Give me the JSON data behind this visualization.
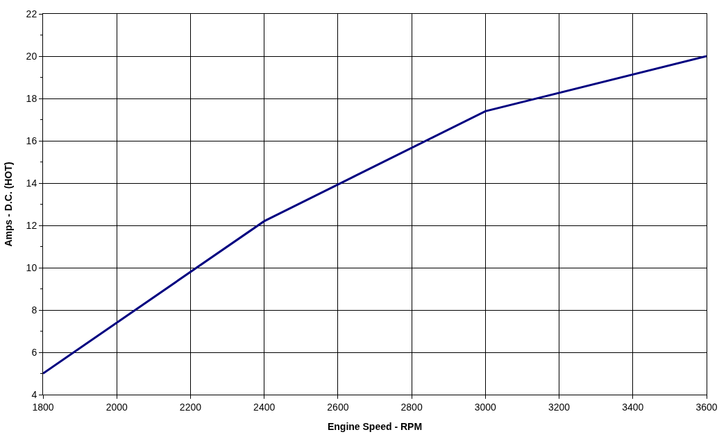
{
  "chart_data": {
    "type": "line",
    "xlabel": "Engine Speed - RPM",
    "ylabel": "Amps - D.C. (HOT)",
    "x": [
      1800,
      2400,
      3000,
      3600
    ],
    "series": [
      {
        "color": "#000080",
        "values": [
          5,
          12.2,
          17.4,
          20
        ]
      }
    ],
    "xlim": [
      1800,
      3600
    ],
    "xticks": [
      1800,
      2000,
      2200,
      2400,
      2600,
      2800,
      3000,
      3200,
      3400,
      3600
    ],
    "ylim": [
      4,
      22
    ],
    "yticks": [
      4,
      6,
      8,
      10,
      12,
      14,
      16,
      18,
      20,
      22
    ],
    "grid": true,
    "marker": "none",
    "line_style": "solid"
  }
}
